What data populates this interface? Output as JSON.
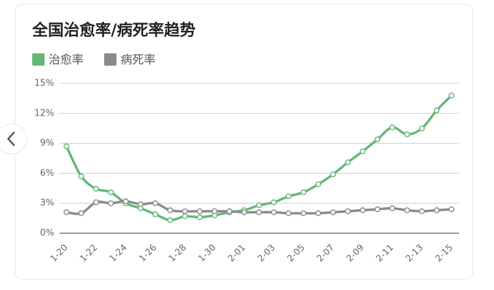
{
  "chart_data": {
    "type": "line",
    "title": "全国治愈率/病死率趋势",
    "categories": [
      "1-20",
      null,
      "1-22",
      null,
      "1-24",
      null,
      "1-26",
      null,
      "1-28",
      null,
      "1-30",
      null,
      "2-01",
      null,
      "2-03",
      null,
      "2-05",
      null,
      "2-07",
      null,
      "2-09",
      null,
      "2-11",
      null,
      "2-13",
      null,
      "2-15"
    ],
    "series": [
      {
        "name": "治愈率",
        "color": "#64b877",
        "values": [
          8.7,
          5.7,
          4.45,
          4.1,
          3.0,
          2.5,
          1.9,
          1.3,
          1.7,
          1.6,
          1.8,
          2.1,
          2.3,
          2.8,
          3.1,
          3.7,
          4.1,
          4.9,
          5.9,
          7.1,
          8.2,
          9.4,
          10.6,
          9.9,
          10.5,
          12.3,
          13.8
        ]
      },
      {
        "name": "病死率",
        "color": "#8a8a8d",
        "values": [
          2.1,
          2.0,
          3.1,
          3.0,
          3.2,
          2.9,
          3.0,
          2.3,
          2.2,
          2.2,
          2.2,
          2.2,
          2.1,
          2.1,
          2.1,
          2.0,
          2.0,
          2.0,
          2.1,
          2.2,
          2.3,
          2.4,
          2.5,
          2.3,
          2.2,
          2.3,
          2.4
        ]
      }
    ],
    "ylim": [
      0,
      15
    ],
    "yticks": [
      {
        "value": 0,
        "label": "0%"
      },
      {
        "value": 3,
        "label": "3%"
      },
      {
        "value": 6,
        "label": "6%"
      },
      {
        "value": 9,
        "label": "9%"
      },
      {
        "value": 12,
        "label": "12%"
      },
      {
        "value": 15,
        "label": "15%"
      }
    ],
    "grid": true
  }
}
